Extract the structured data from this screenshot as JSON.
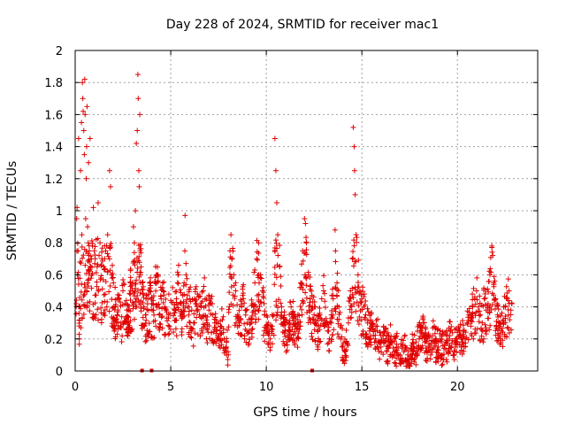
{
  "chart_data": {
    "type": "scatter",
    "title": "Day 228 of 2024, SRMTID for receiver mac1",
    "xlabel": "GPS time / hours",
    "ylabel": "SRMTID / TECUs",
    "xlim": [
      0,
      24.2
    ],
    "ylim": [
      0,
      2
    ],
    "x_ticks": [
      0,
      5,
      10,
      15,
      20
    ],
    "y_ticks": [
      0,
      0.2,
      0.4,
      0.6,
      0.8,
      1,
      1.2,
      1.4,
      1.6,
      1.8,
      2
    ],
    "x_tick_labels": [
      "0",
      "5",
      "10",
      "15",
      "20"
    ],
    "y_tick_labels": [
      "0",
      "0.2",
      "0.4",
      "0.6",
      "0.8",
      "1",
      "1.2",
      "1.4",
      "1.6",
      "1.8",
      "2"
    ],
    "grid": true,
    "marker": "+",
    "color": "#e00000",
    "series": [
      {
        "name": "SRMTID",
        "points": [
          [
            0.05,
            0.42
          ],
          [
            0.08,
            0.95
          ],
          [
            0.1,
            1.02
          ],
          [
            0.12,
            0.6
          ],
          [
            0.15,
            0.75
          ],
          [
            0.18,
            1.45
          ],
          [
            0.2,
            0.36
          ],
          [
            0.22,
            0.2
          ],
          [
            0.25,
            0.68
          ],
          [
            0.28,
            1.25
          ],
          [
            0.3,
            0.27
          ],
          [
            0.33,
            1.55
          ],
          [
            0.35,
            0.85
          ],
          [
            0.38,
            1.8
          ],
          [
            0.4,
            1.7
          ],
          [
            0.42,
            1.62
          ],
          [
            0.45,
            1.5
          ],
          [
            0.48,
            1.35
          ],
          [
            0.5,
            1.82
          ],
          [
            0.52,
            1.6
          ],
          [
            0.55,
            0.95
          ],
          [
            0.58,
            1.2
          ],
          [
            0.6,
            1.4
          ],
          [
            0.62,
            1.65
          ],
          [
            0.65,
            0.9
          ],
          [
            0.68,
            0.8
          ],
          [
            0.7,
            1.3
          ],
          [
            0.72,
            0.72
          ],
          [
            0.75,
            0.62
          ],
          [
            0.78,
            1.45
          ],
          [
            0.8,
            0.65
          ],
          [
            0.85,
            0.7
          ],
          [
            0.9,
            0.78
          ],
          [
            0.95,
            1.02
          ],
          [
            1.0,
            0.75
          ],
          [
            1.05,
            0.7
          ],
          [
            1.1,
            0.82
          ],
          [
            1.15,
            0.65
          ],
          [
            1.2,
            1.05
          ],
          [
            1.25,
            0.72
          ],
          [
            1.3,
            0.8
          ],
          [
            1.35,
            0.58
          ],
          [
            1.4,
            0.7
          ],
          [
            1.5,
            0.65
          ],
          [
            1.6,
            0.75
          ],
          [
            1.7,
            0.85
          ],
          [
            1.8,
            1.25
          ],
          [
            1.85,
            1.15
          ],
          [
            1.9,
            0.6
          ],
          [
            2.0,
            0.55
          ],
          [
            2.1,
            0.4
          ],
          [
            2.2,
            0.35
          ],
          [
            2.3,
            0.45
          ],
          [
            2.4,
            0.3
          ],
          [
            2.5,
            0.5
          ],
          [
            2.6,
            0.42
          ],
          [
            2.7,
            0.38
          ],
          [
            2.8,
            0.3
          ],
          [
            2.9,
            0.55
          ],
          [
            3.0,
            0.5
          ],
          [
            3.05,
            0.9
          ],
          [
            3.1,
            0.8
          ],
          [
            3.15,
            1.0
          ],
          [
            3.2,
            1.42
          ],
          [
            3.25,
            1.5
          ],
          [
            3.28,
            1.85
          ],
          [
            3.3,
            1.7
          ],
          [
            3.33,
            1.25
          ],
          [
            3.35,
            1.15
          ],
          [
            3.38,
            1.6
          ],
          [
            3.4,
            0.75
          ],
          [
            3.45,
            0.65
          ],
          [
            3.5,
            0.55
          ],
          [
            3.55,
            0.48
          ],
          [
            3.6,
            0.4
          ],
          [
            3.7,
            0.35
          ],
          [
            3.8,
            0.45
          ],
          [
            3.9,
            0.5
          ],
          [
            4.0,
            0.42
          ],
          [
            4.1,
            0.38
          ],
          [
            4.2,
            0.55
          ],
          [
            4.3,
            0.6
          ],
          [
            4.4,
            0.35
          ],
          [
            4.5,
            0.45
          ],
          [
            4.6,
            0.5
          ],
          [
            4.7,
            0.4
          ],
          [
            4.8,
            0.33
          ],
          [
            4.9,
            0.48
          ],
          [
            5.0,
            0.44
          ],
          [
            5.1,
            0.52
          ],
          [
            5.2,
            0.38
          ],
          [
            5.3,
            0.45
          ],
          [
            5.4,
            0.6
          ],
          [
            5.5,
            0.42
          ],
          [
            5.6,
            0.35
          ],
          [
            5.7,
            0.55
          ],
          [
            5.75,
            0.97
          ],
          [
            5.8,
            0.6
          ],
          [
            5.9,
            0.4
          ],
          [
            6.0,
            0.45
          ],
          [
            6.1,
            0.38
          ],
          [
            6.2,
            0.3
          ],
          [
            6.3,
            0.42
          ],
          [
            6.4,
            0.48
          ],
          [
            6.5,
            0.35
          ],
          [
            6.6,
            0.4
          ],
          [
            6.7,
            0.5
          ],
          [
            6.8,
            0.45
          ],
          [
            6.9,
            0.3
          ],
          [
            7.0,
            0.38
          ],
          [
            7.1,
            0.42
          ],
          [
            7.2,
            0.35
          ],
          [
            7.3,
            0.3
          ],
          [
            7.4,
            0.25
          ],
          [
            7.5,
            0.2
          ],
          [
            7.6,
            0.28
          ],
          [
            7.7,
            0.32
          ],
          [
            7.8,
            0.2
          ],
          [
            7.9,
            0.15
          ],
          [
            8.0,
            0.12
          ],
          [
            8.1,
            0.75
          ],
          [
            8.15,
            0.85
          ],
          [
            8.2,
            0.7
          ],
          [
            8.3,
            0.6
          ],
          [
            8.4,
            0.5
          ],
          [
            8.5,
            0.35
          ],
          [
            8.6,
            0.3
          ],
          [
            8.7,
            0.4
          ],
          [
            8.8,
            0.45
          ],
          [
            8.9,
            0.38
          ],
          [
            9.0,
            0.3
          ],
          [
            9.1,
            0.25
          ],
          [
            9.2,
            0.32
          ],
          [
            9.3,
            0.42
          ],
          [
            9.4,
            0.55
          ],
          [
            9.5,
            0.7
          ],
          [
            9.6,
            0.8
          ],
          [
            9.7,
            0.6
          ],
          [
            9.8,
            0.5
          ],
          [
            9.9,
            0.35
          ],
          [
            10.0,
            0.25
          ],
          [
            10.1,
            0.3
          ],
          [
            10.2,
            0.2
          ],
          [
            10.3,
            0.28
          ],
          [
            10.4,
            0.35
          ],
          [
            10.45,
            1.45
          ],
          [
            10.5,
            1.25
          ],
          [
            10.55,
            1.05
          ],
          [
            10.6,
            0.85
          ],
          [
            10.7,
            0.65
          ],
          [
            10.8,
            0.4
          ],
          [
            10.9,
            0.3
          ],
          [
            11.0,
            0.25
          ],
          [
            11.1,
            0.22
          ],
          [
            11.2,
            0.3
          ],
          [
            11.3,
            0.4
          ],
          [
            11.4,
            0.35
          ],
          [
            11.5,
            0.28
          ],
          [
            11.6,
            0.2
          ],
          [
            11.7,
            0.3
          ],
          [
            11.8,
            0.55
          ],
          [
            11.9,
            0.75
          ],
          [
            12.0,
            0.95
          ],
          [
            12.05,
            0.92
          ],
          [
            12.1,
            0.8
          ],
          [
            12.2,
            0.6
          ],
          [
            12.3,
            0.45
          ],
          [
            12.4,
            0.4
          ],
          [
            12.5,
            0.35
          ],
          [
            12.6,
            0.3
          ],
          [
            12.7,
            0.25
          ],
          [
            12.8,
            0.35
          ],
          [
            12.9,
            0.45
          ],
          [
            13.0,
            0.5
          ],
          [
            13.1,
            0.3
          ],
          [
            13.2,
            0.25
          ],
          [
            13.3,
            0.2
          ],
          [
            13.4,
            0.35
          ],
          [
            13.5,
            0.45
          ],
          [
            13.6,
            0.88
          ],
          [
            13.7,
            0.55
          ],
          [
            13.8,
            0.4
          ],
          [
            13.9,
            0.2
          ],
          [
            14.0,
            0.15
          ],
          [
            14.1,
            0.12
          ],
          [
            14.2,
            0.18
          ],
          [
            14.3,
            0.3
          ],
          [
            14.4,
            0.5
          ],
          [
            14.5,
            0.7
          ],
          [
            14.55,
            1.52
          ],
          [
            14.6,
            1.4
          ],
          [
            14.62,
            1.25
          ],
          [
            14.65,
            1.1
          ],
          [
            14.7,
            0.85
          ],
          [
            14.8,
            0.6
          ],
          [
            14.9,
            0.5
          ],
          [
            15.0,
            0.45
          ],
          [
            15.1,
            0.4
          ],
          [
            15.2,
            0.35
          ],
          [
            15.3,
            0.3
          ],
          [
            15.4,
            0.25
          ],
          [
            15.5,
            0.28
          ],
          [
            15.6,
            0.22
          ],
          [
            15.7,
            0.2
          ],
          [
            15.8,
            0.25
          ],
          [
            15.9,
            0.18
          ],
          [
            16.0,
            0.15
          ],
          [
            16.1,
            0.22
          ],
          [
            16.2,
            0.18
          ],
          [
            16.3,
            0.12
          ],
          [
            16.4,
            0.15
          ],
          [
            16.5,
            0.2
          ],
          [
            16.6,
            0.1
          ],
          [
            16.7,
            0.12
          ],
          [
            16.8,
            0.08
          ],
          [
            16.9,
            0.15
          ],
          [
            17.0,
            0.1
          ],
          [
            17.1,
            0.08
          ],
          [
            17.2,
            0.12
          ],
          [
            17.3,
            0.06
          ],
          [
            17.4,
            0.1
          ],
          [
            17.5,
            0.05
          ],
          [
            17.6,
            0.08
          ],
          [
            17.7,
            0.12
          ],
          [
            17.8,
            0.1
          ],
          [
            17.9,
            0.15
          ],
          [
            18.0,
            0.2
          ],
          [
            18.1,
            0.25
          ],
          [
            18.2,
            0.3
          ],
          [
            18.3,
            0.18
          ],
          [
            18.4,
            0.12
          ],
          [
            18.5,
            0.15
          ],
          [
            18.6,
            0.1
          ],
          [
            18.7,
            0.22
          ],
          [
            18.8,
            0.18
          ],
          [
            18.9,
            0.12
          ],
          [
            19.0,
            0.15
          ],
          [
            19.1,
            0.2
          ],
          [
            19.2,
            0.1
          ],
          [
            19.3,
            0.14
          ],
          [
            19.4,
            0.18
          ],
          [
            19.5,
            0.12
          ],
          [
            19.6,
            0.22
          ],
          [
            19.7,
            0.15
          ],
          [
            19.8,
            0.1
          ],
          [
            19.9,
            0.2
          ],
          [
            20.0,
            0.18
          ],
          [
            20.1,
            0.22
          ],
          [
            20.2,
            0.15
          ],
          [
            20.3,
            0.25
          ],
          [
            20.4,
            0.2
          ],
          [
            20.5,
            0.3
          ],
          [
            20.6,
            0.35
          ],
          [
            20.7,
            0.28
          ],
          [
            20.8,
            0.4
          ],
          [
            20.9,
            0.45
          ],
          [
            21.0,
            0.5
          ],
          [
            21.1,
            0.4
          ],
          [
            21.2,
            0.35
          ],
          [
            21.3,
            0.3
          ],
          [
            21.4,
            0.45
          ],
          [
            21.5,
            0.38
          ],
          [
            21.6,
            0.42
          ],
          [
            21.7,
            0.6
          ],
          [
            21.8,
            0.78
          ],
          [
            21.85,
            0.72
          ],
          [
            21.9,
            0.55
          ],
          [
            22.0,
            0.45
          ],
          [
            22.1,
            0.35
          ],
          [
            22.2,
            0.3
          ],
          [
            22.3,
            0.25
          ],
          [
            22.4,
            0.32
          ],
          [
            22.5,
            0.4
          ],
          [
            22.6,
            0.45
          ],
          [
            22.7,
            0.5
          ],
          [
            22.8,
            0.38
          ],
          [
            22.85,
            0.42
          ]
        ]
      }
    ],
    "bottom_markers": [
      3.5,
      4.0,
      12.4
    ]
  }
}
